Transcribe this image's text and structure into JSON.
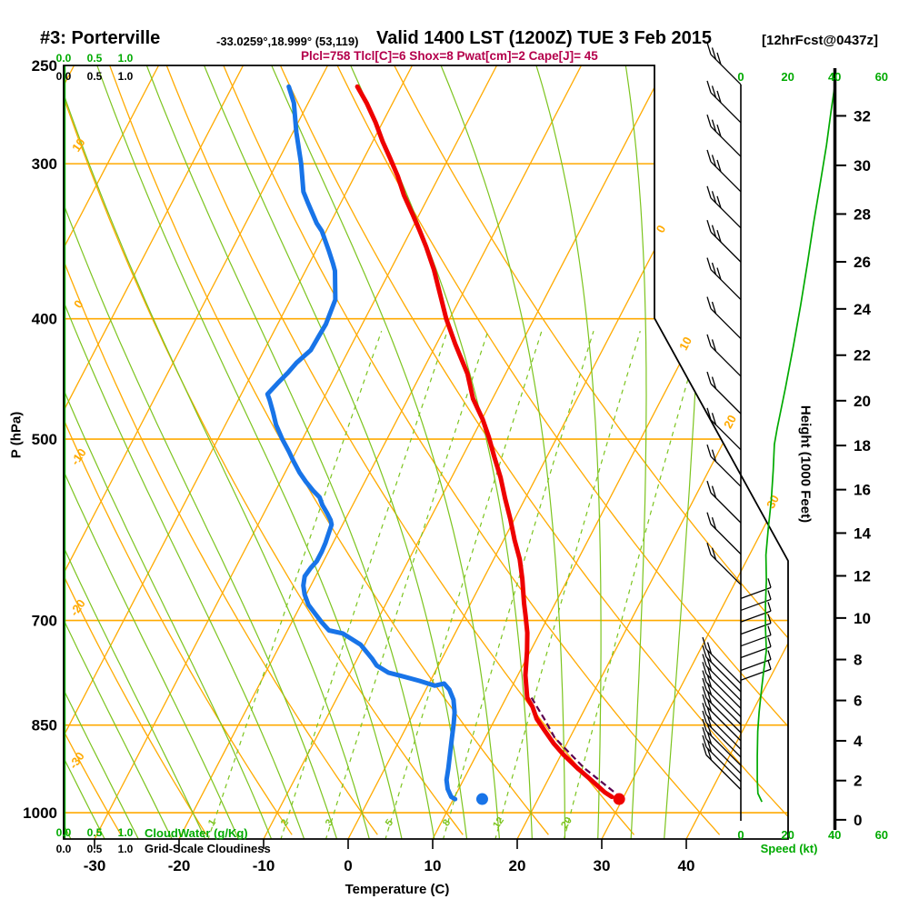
{
  "header": {
    "station_label": "#3: Porterville",
    "coords_label": "-33.0259°,18.999° (53,119)",
    "valid_label": "Valid 1400 LST (1200Z) TUE 3 Feb 2015",
    "forecast_label": "[12hrFcst@0437z]",
    "indices_label": "Plcl=758 Tlcl[C]=6 Shox=8 Pwat[cm]=2 Cape[J]= 45"
  },
  "chart_data": {
    "type": "skewt-logp-sounding",
    "axes": {
      "pressure": {
        "label": "P (hPa)",
        "ticks": [
          250,
          300,
          400,
          500,
          700,
          850,
          1000
        ],
        "range": [
          250,
          1050
        ]
      },
      "temperature": {
        "label": "Temperature (C)",
        "ticks": [
          -30,
          -20,
          -10,
          0,
          10,
          20,
          30,
          40
        ]
      },
      "height": {
        "label": "Height (1000 Feet)",
        "ticks": [
          0,
          2,
          4,
          6,
          8,
          10,
          12,
          14,
          16,
          18,
          20,
          22,
          24,
          26,
          28,
          30,
          32
        ]
      },
      "speed": {
        "label": "Speed (kt)",
        "ticks": [
          0,
          20,
          40,
          60
        ]
      },
      "cloudwater": {
        "label": "CloudWater (g/Kg)",
        "ticks": [
          "0.0",
          "0.5",
          "1.0"
        ]
      },
      "gridscale": {
        "label": "Grid-Scale Cloudiness",
        "ticks": [
          "0.0",
          "0.5",
          "1.0"
        ]
      }
    },
    "grid": {
      "isobars": [
        300,
        400,
        500,
        700,
        850,
        1000
      ],
      "isotherms": {
        "start": -80,
        "end": 40,
        "step": 10,
        "labels": [
          0,
          10,
          20,
          30
        ]
      },
      "dry_adiabats": {
        "theta": [
          -30,
          -20,
          -10,
          0,
          10,
          20,
          30,
          40,
          50,
          60,
          70
        ],
        "labels": [
          10,
          0,
          -10,
          -20,
          -30
        ]
      },
      "moist_adiabats": {
        "theta_w": [
          -40,
          -36,
          -32,
          -28,
          -24,
          -20,
          -16,
          -12,
          -8,
          -4,
          0,
          4,
          8,
          12,
          16,
          20,
          24,
          28,
          32,
          36
        ]
      },
      "mixing_ratio_g_kg": [
        1,
        2,
        3,
        5,
        8,
        12,
        20
      ]
    },
    "temperature_profile": [
      [
        260,
        -45.2
      ],
      [
        268,
        -43.1
      ],
      [
        278,
        -40.8
      ],
      [
        288,
        -38.8
      ],
      [
        297,
        -36.9
      ],
      [
        307,
        -34.9
      ],
      [
        318,
        -33.0
      ],
      [
        329,
        -30.9
      ],
      [
        340,
        -28.9
      ],
      [
        350,
        -27.2
      ],
      [
        365,
        -24.9
      ],
      [
        400,
        -20.4
      ],
      [
        419,
        -17.8
      ],
      [
        443,
        -14.5
      ],
      [
        464,
        -12.3
      ],
      [
        482,
        -9.9
      ],
      [
        498,
        -8.1
      ],
      [
        516,
        -6.3
      ],
      [
        537,
        -4.2
      ],
      [
        558,
        -2.4
      ],
      [
        580,
        -0.5
      ],
      [
        603,
        1.3
      ],
      [
        625,
        3.1
      ],
      [
        648,
        4.6
      ],
      [
        678,
        6.3
      ],
      [
        693,
        7.2
      ],
      [
        716,
        8.5
      ],
      [
        741,
        9.6
      ],
      [
        775,
        10.9
      ],
      [
        808,
        12.5
      ],
      [
        822,
        13.7
      ],
      [
        840,
        14.9
      ],
      [
        859,
        16.6
      ],
      [
        879,
        18.4
      ],
      [
        898,
        20.3
      ],
      [
        921,
        22.8
      ],
      [
        941,
        25.1
      ],
      [
        963,
        27.5
      ],
      [
        971,
        28.6
      ]
    ],
    "dewpoint_profile": [
      [
        260,
        -53.3
      ],
      [
        268,
        -51.7
      ],
      [
        283,
        -49.6
      ],
      [
        300,
        -47.1
      ],
      [
        316,
        -45.1
      ],
      [
        322,
        -44.0
      ],
      [
        335,
        -41.6
      ],
      [
        340,
        -40.5
      ],
      [
        353,
        -38.4
      ],
      [
        361,
        -37.2
      ],
      [
        366,
        -36.5
      ],
      [
        386,
        -34.7
      ],
      [
        404,
        -34.3
      ],
      [
        413,
        -34.4
      ],
      [
        424,
        -34.5
      ],
      [
        434,
        -35.4
      ],
      [
        442,
        -35.8
      ],
      [
        451,
        -36.4
      ],
      [
        460,
        -36.9
      ],
      [
        465,
        -36.3
      ],
      [
        476,
        -35.1
      ],
      [
        487,
        -34.0
      ],
      [
        500,
        -32.4
      ],
      [
        512,
        -30.8
      ],
      [
        521,
        -29.7
      ],
      [
        532,
        -28.3
      ],
      [
        541,
        -27.0
      ],
      [
        550,
        -25.6
      ],
      [
        557,
        -24.4
      ],
      [
        565,
        -23.6
      ],
      [
        574,
        -22.5
      ],
      [
        581,
        -21.7
      ],
      [
        586,
        -21.3
      ],
      [
        596,
        -21.1
      ],
      [
        606,
        -20.9
      ],
      [
        616,
        -20.8
      ],
      [
        627,
        -20.8
      ],
      [
        635,
        -21.1
      ],
      [
        645,
        -21.3
      ],
      [
        656,
        -20.9
      ],
      [
        667,
        -20.2
      ],
      [
        680,
        -19.1
      ],
      [
        691,
        -17.8
      ],
      [
        702,
        -16.5
      ],
      [
        713,
        -15.1
      ],
      [
        717,
        -13.3
      ],
      [
        732,
        -10.5
      ],
      [
        752,
        -8.2
      ],
      [
        761,
        -7.3
      ],
      [
        771,
        -5.5
      ],
      [
        776,
        -3.7
      ],
      [
        783,
        -1.3
      ],
      [
        790,
        0.8
      ],
      [
        787,
        1.8
      ],
      [
        796,
        2.8
      ],
      [
        811,
        3.9
      ],
      [
        830,
        4.8
      ],
      [
        848,
        5.4
      ],
      [
        872,
        6.1
      ],
      [
        896,
        6.8
      ],
      [
        921,
        7.5
      ],
      [
        941,
        8.0
      ],
      [
        957,
        8.7
      ],
      [
        971,
        9.6
      ],
      [
        975,
        10.2
      ]
    ],
    "parcel_path": [
      [
        973,
        29.8
      ],
      [
        920,
        23.5
      ],
      [
        870,
        18.2
      ],
      [
        840,
        15.8
      ],
      [
        808,
        13.0
      ]
    ],
    "surface_dots": {
      "temperature": {
        "p": 975,
        "t": 29.6
      },
      "dewpoint": {
        "p": 975,
        "t": 13.4
      }
    },
    "wind_speed_profile": [
      [
        260,
        40
      ],
      [
        272,
        38.5
      ],
      [
        290,
        36.5
      ],
      [
        310,
        34
      ],
      [
        335,
        31
      ],
      [
        360,
        28.5
      ],
      [
        390,
        25.5
      ],
      [
        420,
        22.5
      ],
      [
        455,
        19
      ],
      [
        490,
        15.5
      ],
      [
        505,
        14.3
      ],
      [
        530,
        13.8
      ],
      [
        560,
        13
      ],
      [
        590,
        11.7
      ],
      [
        620,
        10.7
      ],
      [
        650,
        10.9
      ],
      [
        680,
        10.5
      ],
      [
        710,
        10.5
      ],
      [
        740,
        10.9
      ],
      [
        770,
        9.7
      ],
      [
        800,
        8.7
      ],
      [
        830,
        7.8
      ],
      [
        860,
        7.2
      ],
      [
        900,
        7
      ],
      [
        940,
        7
      ],
      [
        965,
        7.3
      ],
      [
        980,
        9
      ]
    ],
    "wind_barbs": [
      {
        "p": 259,
        "style": "left",
        "feathers": 3
      },
      {
        "p": 278,
        "style": "left",
        "feathers": 3
      },
      {
        "p": 296,
        "style": "left",
        "feathers": 3
      },
      {
        "p": 316,
        "style": "left",
        "feathers": 3
      },
      {
        "p": 338,
        "style": "left",
        "feathers": 3
      },
      {
        "p": 360,
        "style": "left",
        "feathers": 3
      },
      {
        "p": 386,
        "style": "left",
        "feathers": 3
      },
      {
        "p": 415,
        "style": "left",
        "feathers": 2
      },
      {
        "p": 445,
        "style": "left",
        "feathers": 2
      },
      {
        "p": 477,
        "style": "left",
        "feathers": 2
      },
      {
        "p": 510,
        "style": "left",
        "feathers": 2
      },
      {
        "p": 546,
        "style": "left",
        "feathers": 2
      },
      {
        "p": 584,
        "style": "left",
        "feathers": 2
      },
      {
        "p": 619,
        "style": "left",
        "feathers": 2
      },
      {
        "p": 655,
        "style": "left",
        "feathers": 2
      },
      {
        "p": 672,
        "style": "right",
        "feathers": 1
      },
      {
        "p": 687,
        "style": "right",
        "feathers": 1
      },
      {
        "p": 702,
        "style": "right",
        "feathers": 1
      },
      {
        "p": 718,
        "style": "right",
        "feathers": 1
      },
      {
        "p": 734,
        "style": "right",
        "feathers": 1
      },
      {
        "p": 750,
        "style": "right",
        "feathers": 1
      },
      {
        "p": 768,
        "style": "right",
        "feathers": 1
      },
      {
        "p": 782,
        "style": "right",
        "feathers": 1
      },
      {
        "p": 787,
        "style": "fan",
        "feathers": 2
      },
      {
        "p": 799,
        "style": "fan",
        "feathers": 2
      },
      {
        "p": 812,
        "style": "fan",
        "feathers": 2
      },
      {
        "p": 824,
        "style": "fan",
        "feathers": 2
      },
      {
        "p": 837,
        "style": "fan",
        "feathers": 2
      },
      {
        "p": 849,
        "style": "fan",
        "feathers": 2
      },
      {
        "p": 862,
        "style": "fan",
        "feathers": 2
      },
      {
        "p": 875,
        "style": "fan",
        "feathers": 2
      },
      {
        "p": 889,
        "style": "fan",
        "feathers": 2
      },
      {
        "p": 902,
        "style": "fan",
        "feathers": 2
      },
      {
        "p": 916,
        "style": "fan",
        "feathers": 2
      },
      {
        "p": 930,
        "style": "fan",
        "feathers": 2
      },
      {
        "p": 944,
        "style": "fan",
        "feathers": 2
      },
      {
        "p": 958,
        "style": "fan",
        "feathers": 2
      }
    ],
    "cloud_water_profile": {
      "value": 0.0
    },
    "colors": {
      "grid_orange": "#FFAA00",
      "grid_green": "#7CC41E",
      "axis_green": "#00AA00",
      "temp_red": "#EE0000",
      "dew_blue": "#1874E8",
      "parcel_purple": "#5A0050",
      "indices_crimson": "#B4004B",
      "frame_black": "#000000"
    }
  }
}
